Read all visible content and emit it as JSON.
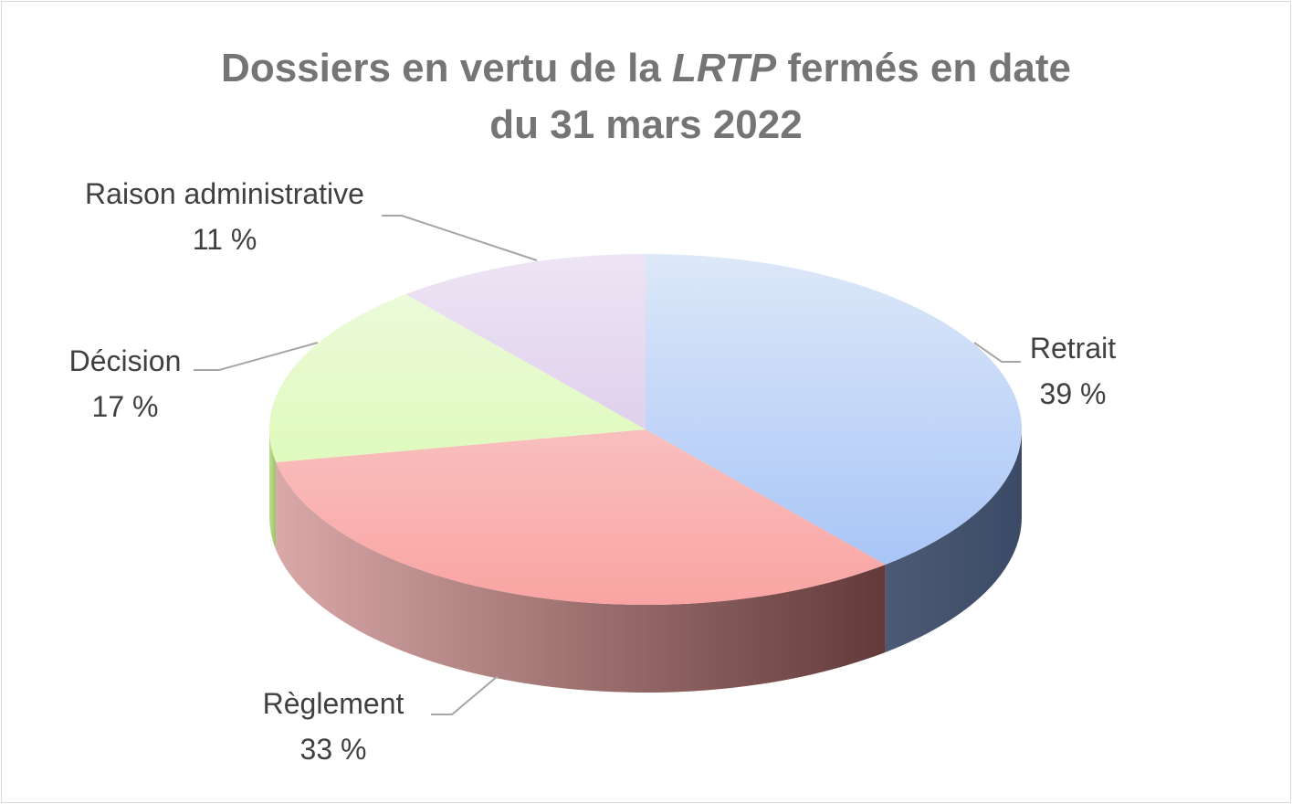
{
  "chart_data": {
    "type": "pie",
    "style": "3d",
    "title": {
      "line1_prefix": "Dossiers en vertu de la ",
      "line1_italic": "LRTP",
      "line1_suffix": " fermés en date",
      "line2": "du 31 mars 2022"
    },
    "slices": [
      {
        "name": "Retrait",
        "value": 39,
        "label": "39 %",
        "colors": {
          "top_light": "#dde8f8",
          "top_dark": "#a2c1f7",
          "side_light": "#4c5a75",
          "side_dark": "#3b4a66"
        }
      },
      {
        "name": "Règlement",
        "value": 33,
        "label": "33 %",
        "colors": {
          "top_light": "#f8dada",
          "top_dark": "#f9a4a2",
          "side_light": "#d9a8a8",
          "side_dark": "#633a3a"
        }
      },
      {
        "name": "Décision",
        "value": 17,
        "label": "17 %",
        "colors": {
          "top_light": "#eefbe0",
          "top_dark": "#d5f8a4",
          "side_light": "#bfe08d",
          "side_dark": "#9abf6c"
        }
      },
      {
        "name": "Raison administrative",
        "value": 11,
        "label": "11 %",
        "colors": {
          "top_light": "#ede4f4",
          "top_dark": "#d2bde4",
          "side_light": "#b9a4cb",
          "side_dark": "#9c88b0"
        }
      }
    ],
    "leader_line_color": "#a6a6a6"
  }
}
